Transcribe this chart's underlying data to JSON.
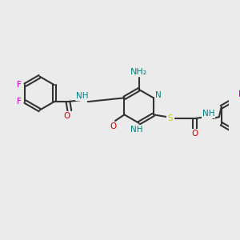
{
  "bg_color": "#ebebeb",
  "bond_color": "#333333",
  "bond_lw": 1.5,
  "atom_colors": {
    "N": "#008080",
    "NH": "#008080",
    "NH2": "#008080",
    "O": "#cc0000",
    "F": "#cc00cc",
    "S": "#cccc00",
    "C": "#333333"
  },
  "font_size": 7.5
}
